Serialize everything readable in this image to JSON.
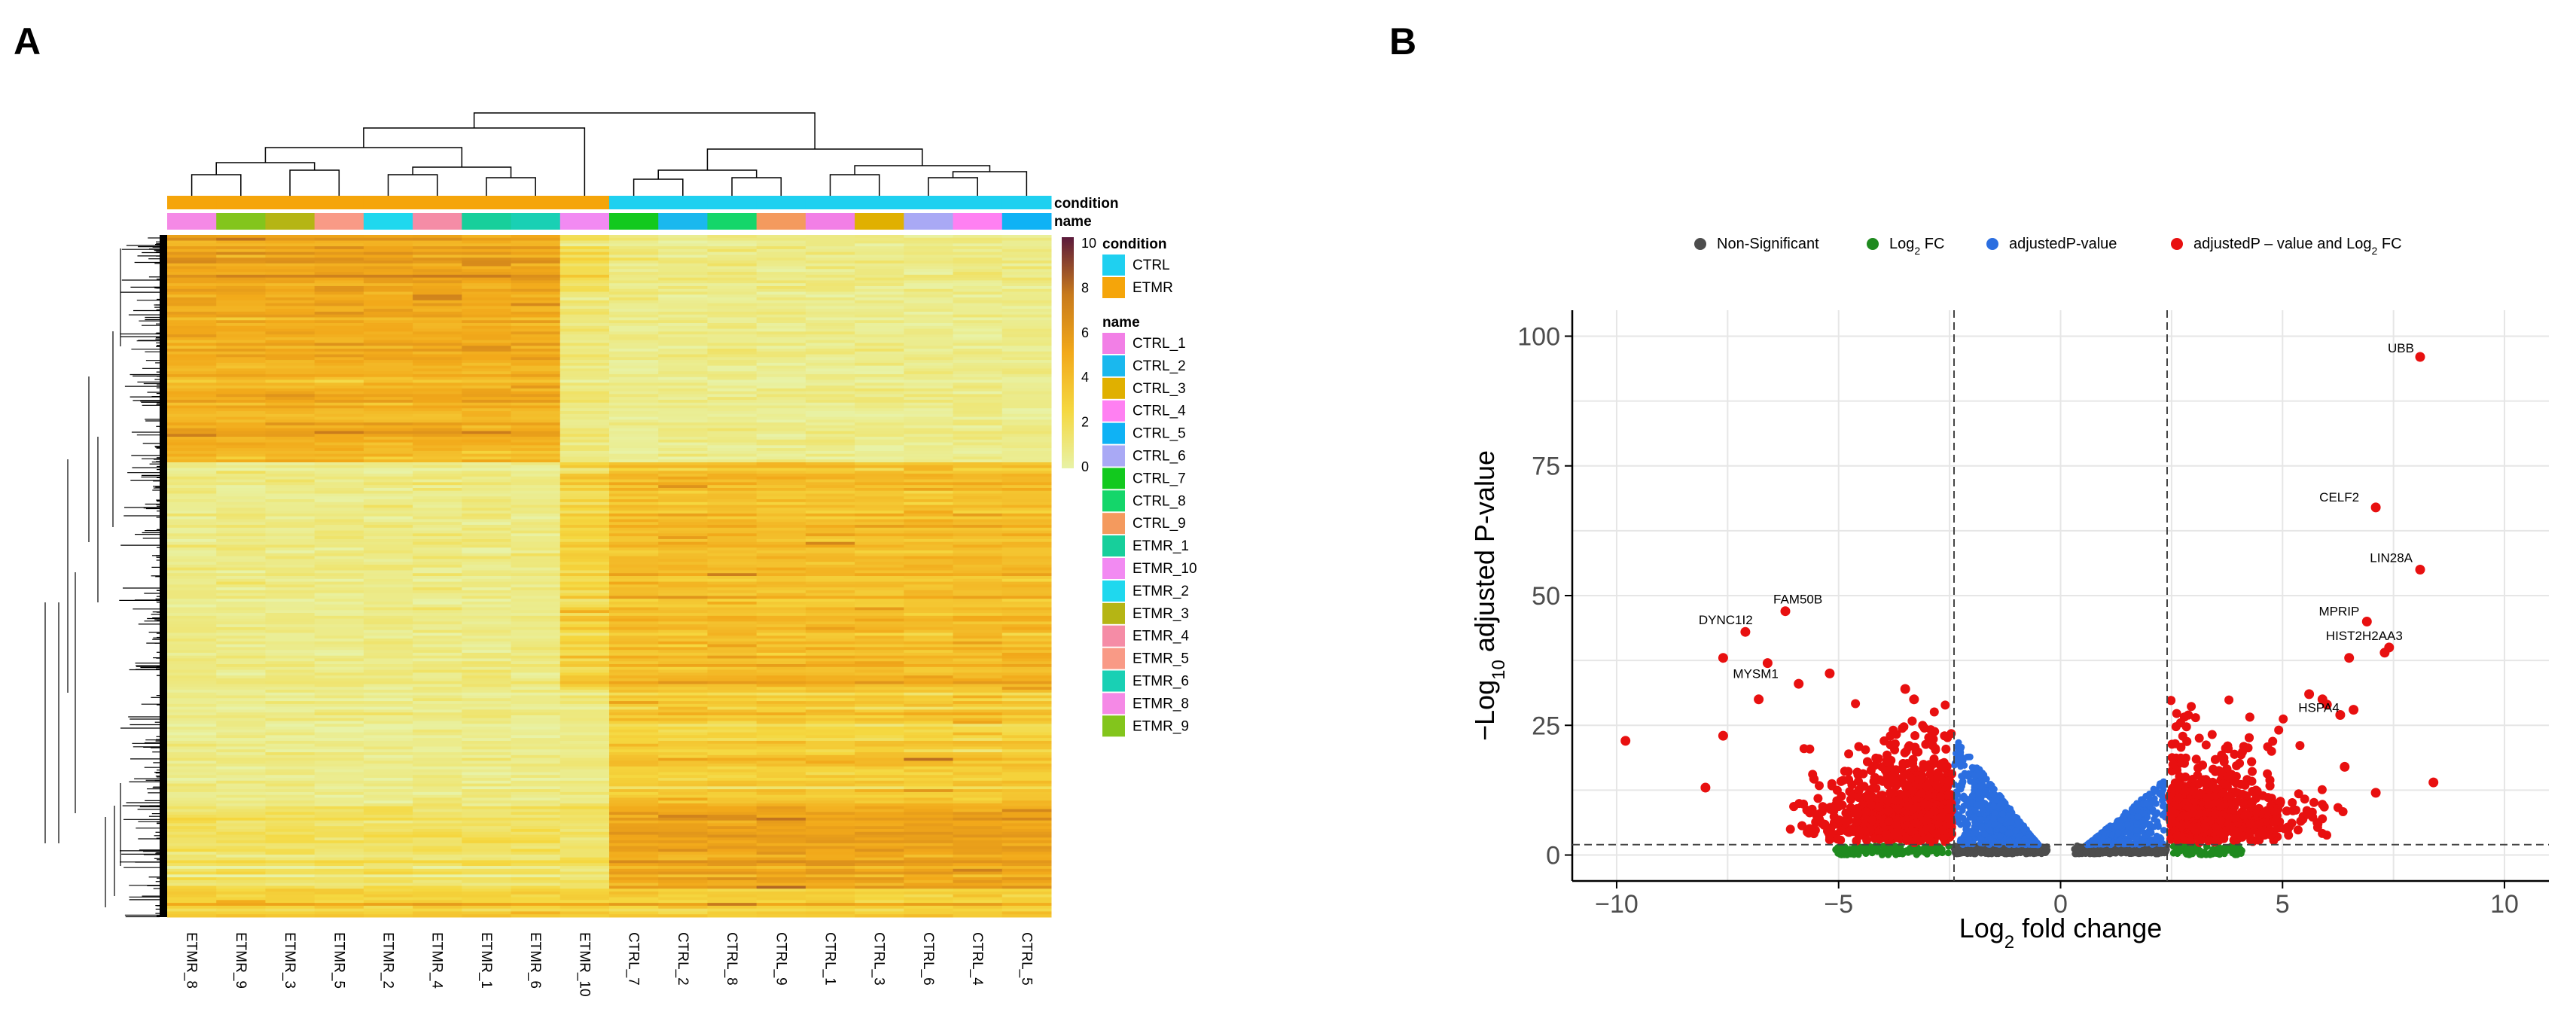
{
  "chart_data": [
    {
      "panel": "A",
      "type": "heatmap",
      "columns": [
        "ETMR_8",
        "ETMR_9",
        "ETMR_3",
        "ETMR_5",
        "ETMR_2",
        "ETMR_4",
        "ETMR_1",
        "ETMR_6",
        "ETMR_10",
        "CTRL_7",
        "CTRL_2",
        "CTRL_8",
        "CTRL_9",
        "CTRL_1",
        "CTRL_3",
        "CTRL_6",
        "CTRL_4",
        "CTRL_5"
      ],
      "column_condition": [
        "ETMR",
        "ETMR",
        "ETMR",
        "ETMR",
        "ETMR",
        "ETMR",
        "ETMR",
        "ETMR",
        "ETMR",
        "CTRL",
        "CTRL",
        "CTRL",
        "CTRL",
        "CTRL",
        "CTRL",
        "CTRL",
        "CTRL",
        "CTRL"
      ],
      "annotation_titles": {
        "condition": "condition",
        "name": "name"
      },
      "condition_legend": [
        {
          "label": "CTRL",
          "color": "#1fd0f0"
        },
        {
          "label": "ETMR",
          "color": "#f5a50a"
        }
      ],
      "name_legend": [
        {
          "label": "CTRL_1",
          "color": "#f27fe6"
        },
        {
          "label": "CTRL_2",
          "color": "#1ab8ee"
        },
        {
          "label": "CTRL_3",
          "color": "#e0b000"
        },
        {
          "label": "CTRL_4",
          "color": "#ff80f2"
        },
        {
          "label": "CTRL_5",
          "color": "#0fb2f5"
        },
        {
          "label": "CTRL_6",
          "color": "#a9a9f5"
        },
        {
          "label": "CTRL_7",
          "color": "#12c91e"
        },
        {
          "label": "CTRL_8",
          "color": "#14d66a"
        },
        {
          "label": "CTRL_9",
          "color": "#f49a5e"
        },
        {
          "label": "ETMR_1",
          "color": "#17cf9b"
        },
        {
          "label": "ETMR_10",
          "color": "#f28af2"
        },
        {
          "label": "ETMR_2",
          "color": "#1fd8ee"
        },
        {
          "label": "ETMR_3",
          "color": "#b5b514"
        },
        {
          "label": "ETMR_4",
          "color": "#f58ca6"
        },
        {
          "label": "ETMR_5",
          "color": "#f99a86"
        },
        {
          "label": "ETMR_6",
          "color": "#19d0b4"
        },
        {
          "label": "ETMR_8",
          "color": "#f589e6"
        },
        {
          "label": "ETMR_9",
          "color": "#83c51c"
        }
      ],
      "colorbar": {
        "min": 0,
        "max": 10,
        "ticks": [
          0,
          2,
          4,
          6,
          8,
          10
        ],
        "colors": [
          "#e8f2a6",
          "#f5d840",
          "#f2a91a",
          "#c87a1c",
          "#5b1a3c"
        ]
      },
      "row_blocks": [
        {
          "rows": 20,
          "etmr": 5.3,
          "ctrl": 0.8,
          "etmr10": 2.0
        },
        {
          "rows": 60,
          "etmr": 4.6,
          "ctrl": 0.6,
          "etmr10": 1.0
        },
        {
          "rows": 80,
          "etmr": 0.7,
          "ctrl": 3.8,
          "etmr10": 2.5
        },
        {
          "rows": 40,
          "etmr": 0.6,
          "ctrl": 3.0,
          "etmr10": 0.8
        },
        {
          "rows": 30,
          "etmr": 1.6,
          "ctrl": 5.2,
          "etmr10": 1.5
        },
        {
          "rows": 10,
          "etmr": 2.8,
          "ctrl": 2.8,
          "etmr10": 2.8
        }
      ]
    },
    {
      "panel": "B",
      "type": "scatter",
      "subtype": "volcano",
      "xlabel": "Log2 fold change",
      "ylabel": "−Log10 adjusted P-value",
      "xlim": [
        -11,
        11
      ],
      "ylim": [
        -5,
        105
      ],
      "xticks": [
        -10,
        -5,
        0,
        5,
        10
      ],
      "yticks": [
        0,
        25,
        50,
        75,
        100
      ],
      "fc_cutoff": 2.4,
      "p_cutoff_line": 2,
      "legend": [
        {
          "label": "Non-Significant",
          "color": "#4d4d4d"
        },
        {
          "label": "Log2 FC",
          "color": "#1f8a1f"
        },
        {
          "label": "adjustedP-value",
          "color": "#2b6ee0"
        },
        {
          "label": "adjustedP – value and Log2 FC",
          "color": "#e81010"
        }
      ],
      "labeled_genes": [
        {
          "label": "UBB",
          "x": 8.1,
          "y": 96
        },
        {
          "label": "CELF2",
          "x": 7.1,
          "y": 67
        },
        {
          "label": "LIN28A",
          "x": 8.1,
          "y": 55
        },
        {
          "label": "MPRIP",
          "x": 6.9,
          "y": 45
        },
        {
          "label": "HIST2H2AA3",
          "x": 7.4,
          "y": 40
        },
        {
          "label": "HSPA4",
          "x": 6.0,
          "y": 29
        },
        {
          "label": "FAM50B",
          "x": -6.2,
          "y": 47
        },
        {
          "label": "DYNC1I2",
          "x": -7.1,
          "y": 43
        },
        {
          "label": "MYSM1",
          "x": -6.6,
          "y": 37
        }
      ],
      "extra_points": [
        {
          "x": -9.8,
          "y": 22
        },
        {
          "x": -8.0,
          "y": 13
        },
        {
          "x": -7.6,
          "y": 38
        },
        {
          "x": -7.6,
          "y": 23
        },
        {
          "x": -6.8,
          "y": 30
        },
        {
          "x": -5.9,
          "y": 33
        },
        {
          "x": -5.2,
          "y": 35
        },
        {
          "x": -3.5,
          "y": 32
        },
        {
          "x": -3.3,
          "y": 30
        },
        {
          "x": 6.5,
          "y": 38
        },
        {
          "x": 7.3,
          "y": 39
        },
        {
          "x": 5.9,
          "y": 30
        },
        {
          "x": 6.3,
          "y": 27
        },
        {
          "x": 6.6,
          "y": 28
        },
        {
          "x": 8.4,
          "y": 14
        },
        {
          "x": 7.1,
          "y": 12
        },
        {
          "x": 6.4,
          "y": 17
        },
        {
          "x": 5.6,
          "y": 31
        }
      ]
    }
  ],
  "panel_labels": {
    "a": "A",
    "b": "B"
  }
}
